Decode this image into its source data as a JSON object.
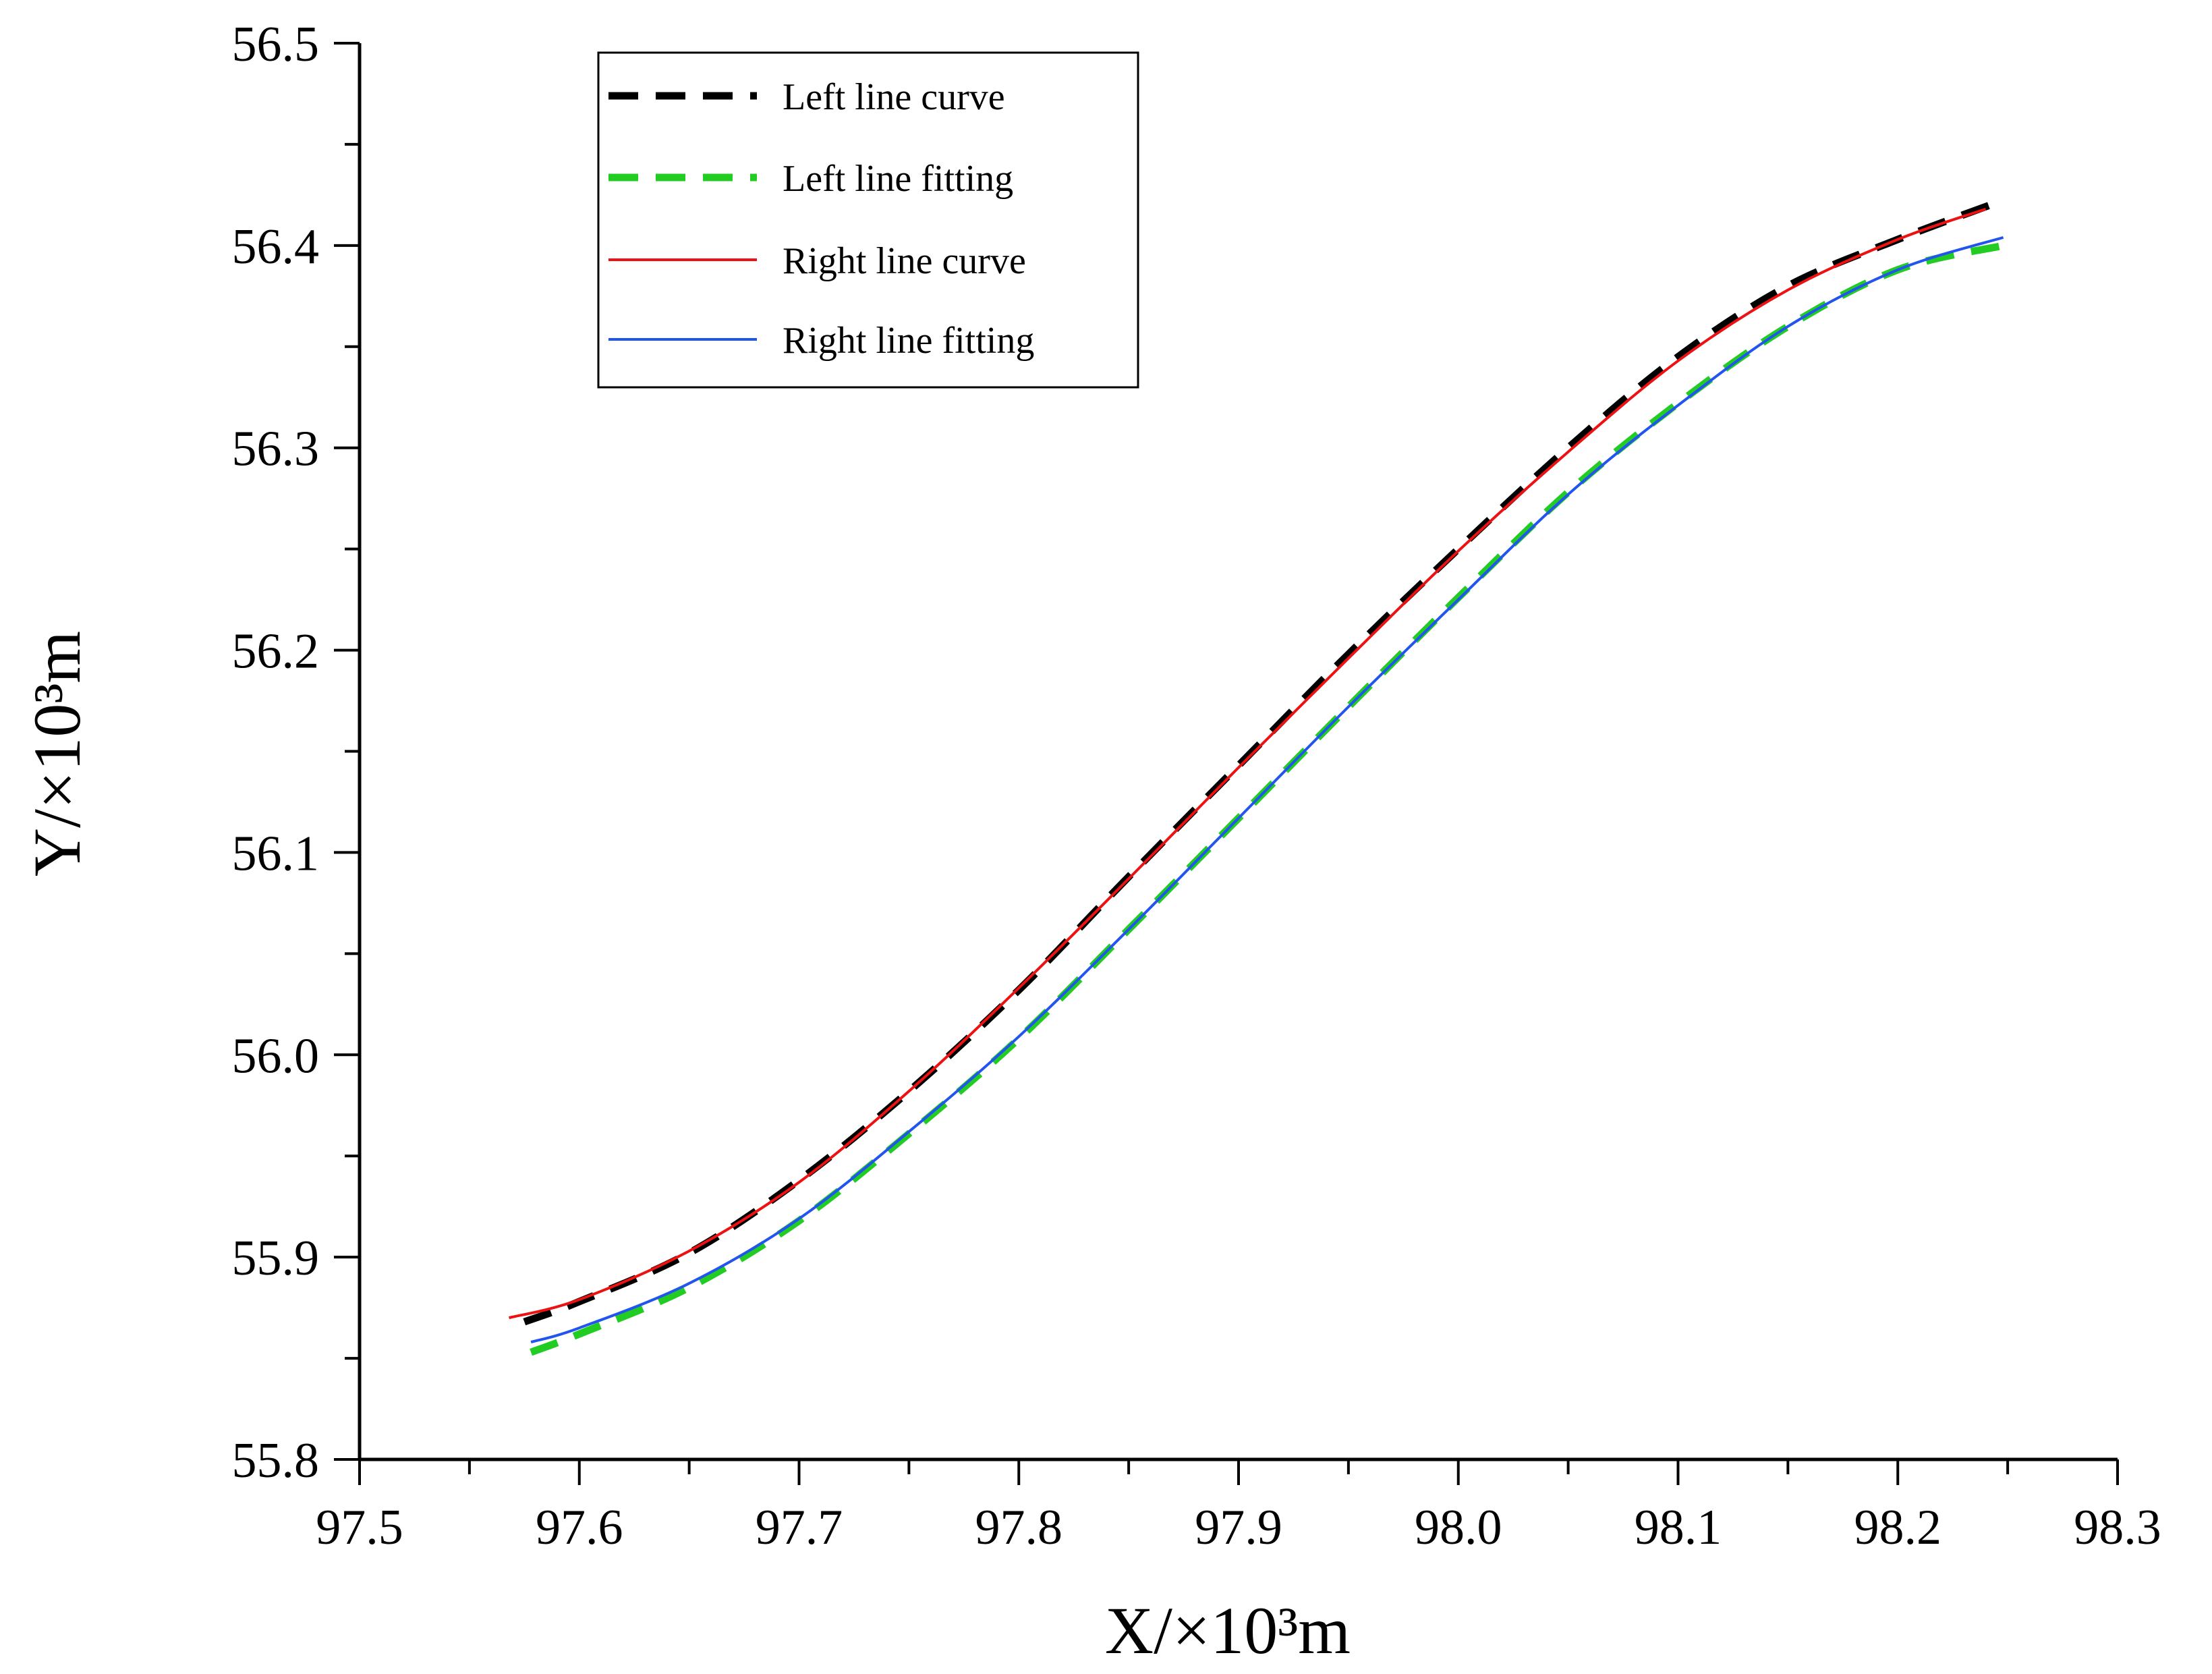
{
  "chart_data": {
    "type": "line",
    "title": "",
    "xlabel": "X/×10³m",
    "ylabel": "Y/×10³m",
    "xlim": [
      97.5,
      98.3
    ],
    "ylim": [
      55.8,
      56.5
    ],
    "xticks": [
      "97.5",
      "97.6",
      "97.7",
      "97.8",
      "97.9",
      "98.0",
      "98.1",
      "98.2",
      "98.3"
    ],
    "yticks": [
      "55.8",
      "55.9",
      "56.0",
      "56.1",
      "56.2",
      "56.3",
      "56.4",
      "56.5"
    ],
    "grid": false,
    "legend_position": "top-left",
    "series": [
      {
        "name": "Left line curve",
        "color": "#000000",
        "style": "dashed",
        "x": [
          97.575,
          97.6,
          97.65,
          97.7,
          97.75,
          97.8,
          97.85,
          97.9,
          97.95,
          98.0,
          98.05,
          98.1,
          98.15,
          98.2,
          98.242
        ],
        "y": [
          55.868,
          55.878,
          55.902,
          55.938,
          55.982,
          56.032,
          56.088,
          56.143,
          56.198,
          56.25,
          56.3,
          56.345,
          56.38,
          56.403,
          56.42
        ]
      },
      {
        "name": "Left line fitting",
        "color": "#22cc22",
        "style": "dashed",
        "x": [
          97.578,
          97.6,
          97.65,
          97.7,
          97.75,
          97.8,
          97.85,
          97.9,
          97.95,
          98.0,
          98.05,
          98.1,
          98.15,
          98.2,
          98.248
        ],
        "y": [
          55.853,
          55.862,
          55.885,
          55.918,
          55.961,
          56.008,
          56.062,
          56.117,
          56.172,
          56.226,
          56.278,
          56.322,
          56.36,
          56.388,
          56.4
        ]
      },
      {
        "name": "Right line curve",
        "color": "#ee1111",
        "style": "solid",
        "x": [
          97.568,
          97.6,
          97.65,
          97.7,
          97.75,
          97.8,
          97.85,
          97.9,
          97.95,
          98.0,
          98.05,
          98.1,
          98.15,
          98.2,
          98.24
        ],
        "y": [
          55.87,
          55.879,
          55.903,
          55.937,
          55.982,
          56.033,
          56.087,
          56.142,
          56.196,
          56.249,
          56.298,
          56.343,
          56.378,
          56.403,
          56.418
        ]
      },
      {
        "name": "Right line fitting",
        "color": "#2255ee",
        "style": "solid",
        "x": [
          97.578,
          97.6,
          97.65,
          97.7,
          97.75,
          97.8,
          97.85,
          97.9,
          97.95,
          98.0,
          98.05,
          98.1,
          98.15,
          98.2,
          98.248
        ],
        "y": [
          55.858,
          55.865,
          55.887,
          55.919,
          55.962,
          56.009,
          56.062,
          56.117,
          56.172,
          56.225,
          56.277,
          56.321,
          56.36,
          56.388,
          56.404
        ]
      }
    ]
  }
}
